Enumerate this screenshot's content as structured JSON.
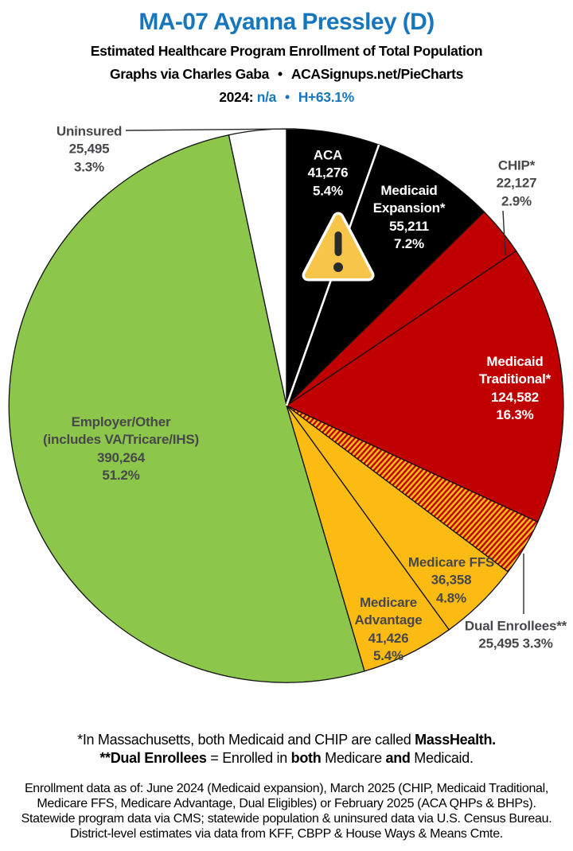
{
  "header": {
    "title": "MA-07 Ayanna Pressley (D)",
    "subtitle": "Estimated Healthcare Program Enrollment of Total Population",
    "byline_left": "Graphs via Charles Gaba",
    "byline_bullet": "•",
    "byline_right": "ACASignups.net/PieCharts",
    "year_label": "2024:",
    "year_value": "n/a",
    "year_bullet": "•",
    "year_metric": "H+63.1%"
  },
  "colors": {
    "accent_blue": "#1777BD",
    "pie_black": "#000000",
    "pie_red": "#C00000",
    "pie_amber": "#FCBB13",
    "pie_green": "#8CC64A",
    "pie_white": "#FFFFFF",
    "label_dark": "#48484A",
    "warning_yellow": "#F8C54B",
    "warning_glyph": "#2A2A2A"
  },
  "chart_data": {
    "type": "pie",
    "title": "Estimated Healthcare Program Enrollment of Total Population",
    "units": "people",
    "rotation_deg": -12.04,
    "slice_stroke": "#111111",
    "legend_position": "labels-on-slices",
    "slices": [
      {
        "name": "Uninsured",
        "value": 25495,
        "value_label": "25,495",
        "pct": "3.3%",
        "fill": "#FFFFFF"
      },
      {
        "name": "ACA",
        "value": 41276,
        "value_label": "41,276",
        "pct": "5.4%",
        "fill": "#000000"
      },
      {
        "name": "Medicaid Expansion*",
        "name_lines": [
          "Medicaid",
          "Expansion*"
        ],
        "value": 55211,
        "value_label": "55,211",
        "pct": "7.2%",
        "fill": "#000000",
        "start_edge_color": "#FFFFFF"
      },
      {
        "name": "CHIP*",
        "value": 22127,
        "value_label": "22,127",
        "pct": "2.9%",
        "fill": "#C00000"
      },
      {
        "name": "Medicaid Traditional*",
        "name_lines": [
          "Medicaid",
          "Traditional*"
        ],
        "value": 124582,
        "value_label": "124,582",
        "pct": "16.3%",
        "fill": "#C00000"
      },
      {
        "name": "Dual Enrollees**",
        "value": 25495,
        "value_label": "25,495",
        "pct": "3.3%",
        "fill": "hatch"
      },
      {
        "name": "Medicare FFS",
        "value": 36358,
        "value_label": "36,358",
        "pct": "4.8%",
        "fill": "#FCBB13"
      },
      {
        "name": "Medicare Advantage",
        "name_lines": [
          "Medicare",
          "Advantage"
        ],
        "value": 41426,
        "value_label": "41,426",
        "pct": "5.4%",
        "fill": "#FCBB13"
      },
      {
        "name": "Employer/Other (includes VA/Tricare/IHS)",
        "name_lines": [
          "Employer/Other",
          "(includes VA/Tricare/IHS)"
        ],
        "value": 390264,
        "value_label": "390,264",
        "pct": "51.2%",
        "fill": "#8CC64A"
      }
    ]
  },
  "footnotes": {
    "line1_pre": "*In Massachusetts, both Medicaid and CHIP are called ",
    "line1_bold": "MassHealth.",
    "line2_bold1": "**Dual Enrollees",
    "line2_seg1": " = Enrolled in ",
    "line2_bold2": "both",
    "line2_seg2": " Medicare ",
    "line2_bold3": "and",
    "line2_seg3": " Medicaid.",
    "datanote_lines": [
      "Enrollment data as of: June 2024 (Medicaid expansion), March 2025 (CHIP, Medicaid Traditional,",
      "Medicare FFS, Medicare Advantage, Dual Eligibles) or February 2025 (ACA QHPs & BHPs).",
      "Statewide program data via CMS; statewide population & uninsured data via U.S. Census Bureau.",
      "District-level estimates via data from KFF, CBPP & House Ways & Means Cmte."
    ]
  }
}
